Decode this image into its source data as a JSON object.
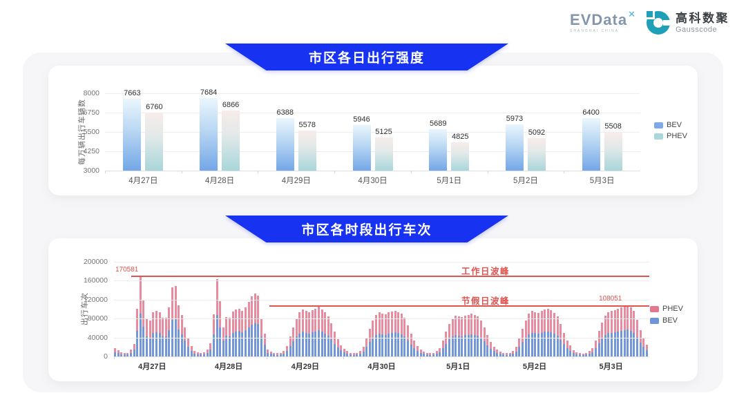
{
  "header": {
    "evdata": {
      "name": "EVData",
      "mark": "✕",
      "subtext": "SHANGHAI CHINA"
    },
    "gausscode": {
      "name_cn": "高科数聚",
      "name_en": "Gausscode"
    }
  },
  "colors": {
    "banner_blue": "#1733f1",
    "annotation_red": "#e0524e",
    "chart1_bev_gradient": [
      "#eaf6fd",
      "#73a7e7"
    ],
    "chart1_phev_gradient": [
      "#f7ece9",
      "#a8d6da"
    ],
    "chart2_bev": "#7197da",
    "chart2_phev": "#e98b9e"
  },
  "chart_data": [
    {
      "type": "bar",
      "title": "市区各日出行强度",
      "ylabel": "每万辆出行车辆数",
      "xlabel": "",
      "categories": [
        "4月27日",
        "4月28日",
        "4月29日",
        "4月30日",
        "5月1日",
        "5月2日",
        "5月3日"
      ],
      "series": [
        {
          "name": "BEV",
          "values": [
            7663,
            7684,
            6388,
            5946,
            5689,
            5973,
            6400
          ]
        },
        {
          "name": "PHEV",
          "values": [
            6760,
            6866,
            5578,
            5125,
            4825,
            5092,
            5508
          ]
        }
      ],
      "ylim": [
        3000,
        8000
      ],
      "yticks": [
        3000,
        4250,
        5500,
        6750,
        8000
      ],
      "grid": true,
      "legend_position": "right"
    },
    {
      "type": "bar-stacked",
      "title": "市区各时段出行车次",
      "ylabel": "出行车次",
      "xlabel": "",
      "categories": [
        "4月27日",
        "4月28日",
        "4月29日",
        "4月30日",
        "5月1日",
        "5月2日",
        "5月3日"
      ],
      "hours_per_day": 24,
      "ylim": [
        0,
        200000
      ],
      "yticks": [
        0,
        40000,
        80000,
        120000,
        160000,
        200000
      ],
      "legend": [
        "PHEV",
        "BEV"
      ],
      "legend_position": "right",
      "annotations": {
        "workday": {
          "label": "工作日波峰",
          "value": 170581,
          "value_label": "170581"
        },
        "holiday": {
          "label": "节假日波峰",
          "value": 108051,
          "value_label": "108051"
        }
      },
      "series": [
        {
          "name": "BEV",
          "days": [
            [
              9500,
              7000,
              5000,
              4300,
              4300,
              7500,
              14000,
              54000,
              91000,
              63000,
              42000,
              40000,
              50000,
              51000,
              49000,
              43000,
              43000,
              55000,
              78000,
              79000,
              57000,
              47000,
              33000,
              21000
            ],
            [
              11700,
              6400,
              4800,
              4200,
              4800,
              8000,
              15000,
              47000,
              87000,
              62000,
              33000,
              44000,
              43000,
              50000,
              53000,
              54000,
              51000,
              55000,
              61000,
              67000,
              70000,
              68000,
              42000,
              25000
            ],
            [
              7300,
              5200,
              4200,
              3600,
              4200,
              6200,
              11400,
              22000,
              32000,
              42000,
              48000,
              52000,
              50000,
              48000,
              51000,
              53000,
              55000,
              52000,
              48000,
              44000,
              36000,
              27000,
              19000,
              12500
            ],
            [
              8300,
              5700,
              4200,
              3600,
              4200,
              6200,
              10400,
              20000,
              30000,
              40000,
              46000,
              48000,
              47000,
              46000,
              48000,
              50000,
              51000,
              49000,
              47000,
              43000,
              34000,
              25000,
              17000,
              11500
            ],
            [
              7800,
              5200,
              4200,
              3600,
              4200,
              5700,
              9400,
              18000,
              27000,
              36000,
              42000,
              45000,
              44000,
              43000,
              45000,
              46000,
              47000,
              46000,
              44000,
              40000,
              32000,
              23000,
              16000,
              11000
            ],
            [
              7300,
              5200,
              4200,
              3600,
              4200,
              6200,
              10400,
              20000,
              30000,
              40000,
              47000,
              50000,
              49000,
              48000,
              50000,
              52000,
              53000,
              51000,
              48000,
              44000,
              35000,
              26000,
              18000,
              12000
            ],
            [
              6800,
              4700,
              3700,
              3100,
              3700,
              5700,
              9400,
              18000,
              28000,
              38000,
              45000,
              49000,
              50000,
              51000,
              53000,
              54000,
              55000,
              57000,
              54000,
              50000,
              41000,
              29000,
              20000,
              13000
            ]
          ]
        },
        {
          "name": "PHEV",
          "days": [
            [
              8500,
              6000,
              4000,
              3700,
              3700,
              6500,
              12000,
              47000,
              79581,
              56000,
              38000,
              36000,
              44000,
              45000,
              44000,
              39000,
              39000,
              49000,
              68000,
              70000,
              51000,
              41000,
              29000,
              19000
            ],
            [
              10300,
              5600,
              4200,
              3800,
              4200,
              7000,
              13000,
              42000,
              77000,
              55000,
              29000,
              39000,
              39000,
              45000,
              47000,
              47000,
              45000,
              48000,
              54000,
              60000,
              63000,
              61000,
              38000,
              23000
            ],
            [
              6700,
              4800,
              3800,
              3400,
              3800,
              5800,
              10600,
              20000,
              30000,
              38000,
              45000,
              47000,
              46000,
              45000,
              47000,
              48000,
              50000,
              48000,
              45000,
              41000,
              34000,
              25000,
              17000,
              11500
            ],
            [
              7700,
              5300,
              3800,
              3400,
              3800,
              5800,
              9600,
              18000,
              28000,
              36000,
              42000,
              45000,
              44000,
              43000,
              45000,
              45000,
              46000,
              45000,
              43000,
              39000,
              32000,
              23000,
              16000,
              10500
            ],
            [
              7200,
              4800,
              3800,
              3400,
              3800,
              5300,
              8600,
              16000,
              25000,
              32000,
              38000,
              41000,
              41000,
              40000,
              41000,
              42000,
              43000,
              42000,
              40000,
              36000,
              30000,
              22000,
              15000,
              10000
            ],
            [
              6700,
              4800,
              3800,
              3400,
              3800,
              5800,
              9600,
              18000,
              28000,
              36000,
              43000,
              46000,
              45000,
              44000,
              46000,
              47000,
              48000,
              47000,
              44000,
              40000,
              33000,
              24000,
              16000,
              11000
            ],
            [
              6200,
              4300,
              3300,
              2900,
              3300,
              5300,
              8600,
              16000,
              26000,
              34000,
              41000,
              45000,
              46000,
              47000,
              48000,
              50000,
              51000,
              51051,
              50000,
              46000,
              37000,
              27000,
              18000,
              12000
            ]
          ]
        }
      ]
    }
  ]
}
